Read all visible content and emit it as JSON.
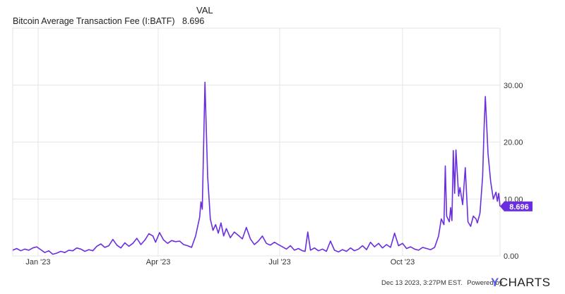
{
  "chart_data": {
    "type": "line",
    "title": "Bitcoin Average Transaction Fee (I:BATF)",
    "value_header": "VAL",
    "current_value": "8.696",
    "last_value_label": "8.696",
    "ylim": [
      0,
      40
    ],
    "yticks": [
      0,
      10,
      20,
      30
    ],
    "ytick_labels": [
      "0.00",
      "10.00",
      "20.00",
      "30.00"
    ],
    "xlim": [
      "2022-12-13",
      "2023-12-13"
    ],
    "xticks": [
      "2023-01-01",
      "2023-04-01",
      "2023-07-01",
      "2023-10-01"
    ],
    "xtick_labels": [
      "Jan '23",
      "Apr '23",
      "Jul '23",
      "Oct '23"
    ],
    "grid": true,
    "series": [
      {
        "name": "Bitcoin Average Transaction Fee",
        "color": "#6a2ee0",
        "points": [
          [
            "2022-12-13",
            1.0
          ],
          [
            "2022-12-16",
            1.3
          ],
          [
            "2022-12-19",
            0.9
          ],
          [
            "2022-12-22",
            1.2
          ],
          [
            "2022-12-25",
            1.0
          ],
          [
            "2022-12-28",
            1.4
          ],
          [
            "2022-12-31",
            1.6
          ],
          [
            "2023-01-03",
            1.1
          ],
          [
            "2023-01-06",
            0.6
          ],
          [
            "2023-01-09",
            0.9
          ],
          [
            "2023-01-12",
            0.3
          ],
          [
            "2023-01-15",
            0.5
          ],
          [
            "2023-01-18",
            0.8
          ],
          [
            "2023-01-21",
            0.6
          ],
          [
            "2023-01-24",
            1.0
          ],
          [
            "2023-01-27",
            0.9
          ],
          [
            "2023-01-30",
            1.4
          ],
          [
            "2023-02-02",
            1.2
          ],
          [
            "2023-02-05",
            0.8
          ],
          [
            "2023-02-08",
            1.1
          ],
          [
            "2023-02-11",
            0.9
          ],
          [
            "2023-02-14",
            1.7
          ],
          [
            "2023-02-17",
            2.1
          ],
          [
            "2023-02-20",
            1.5
          ],
          [
            "2023-02-23",
            1.8
          ],
          [
            "2023-02-26",
            2.9
          ],
          [
            "2023-03-01",
            1.9
          ],
          [
            "2023-03-04",
            1.4
          ],
          [
            "2023-03-07",
            2.3
          ],
          [
            "2023-03-10",
            1.7
          ],
          [
            "2023-03-13",
            2.2
          ],
          [
            "2023-03-16",
            3.1
          ],
          [
            "2023-03-19",
            2.0
          ],
          [
            "2023-03-22",
            2.8
          ],
          [
            "2023-03-25",
            3.9
          ],
          [
            "2023-03-28",
            3.5
          ],
          [
            "2023-03-30",
            2.4
          ],
          [
            "2023-04-02",
            4.1
          ],
          [
            "2023-04-05",
            2.8
          ],
          [
            "2023-04-08",
            2.2
          ],
          [
            "2023-04-11",
            2.7
          ],
          [
            "2023-04-14",
            2.5
          ],
          [
            "2023-04-17",
            2.6
          ],
          [
            "2023-04-20",
            2.0
          ],
          [
            "2023-04-23",
            1.8
          ],
          [
            "2023-04-26",
            1.5
          ],
          [
            "2023-04-29",
            3.5
          ],
          [
            "2023-05-02",
            6.8
          ],
          [
            "2023-05-03",
            9.5
          ],
          [
            "2023-05-04",
            8.2
          ],
          [
            "2023-05-06",
            30.5
          ],
          [
            "2023-05-08",
            14.0
          ],
          [
            "2023-05-10",
            6.5
          ],
          [
            "2023-05-12",
            4.5
          ],
          [
            "2023-05-14",
            5.5
          ],
          [
            "2023-05-16",
            4.0
          ],
          [
            "2023-05-18",
            5.8
          ],
          [
            "2023-05-20",
            3.5
          ],
          [
            "2023-05-22",
            4.8
          ],
          [
            "2023-05-25",
            3.2
          ],
          [
            "2023-05-28",
            4.2
          ],
          [
            "2023-05-31",
            3.6
          ],
          [
            "2023-06-03",
            3.0
          ],
          [
            "2023-06-06",
            5.0
          ],
          [
            "2023-06-09",
            3.0
          ],
          [
            "2023-06-12",
            2.0
          ],
          [
            "2023-06-15",
            2.6
          ],
          [
            "2023-06-18",
            3.5
          ],
          [
            "2023-06-21",
            2.2
          ],
          [
            "2023-06-24",
            1.9
          ],
          [
            "2023-06-27",
            2.4
          ],
          [
            "2023-06-30",
            2.0
          ],
          [
            "2023-07-03",
            1.6
          ],
          [
            "2023-07-06",
            1.2
          ],
          [
            "2023-07-09",
            1.8
          ],
          [
            "2023-07-12",
            1.0
          ],
          [
            "2023-07-15",
            1.3
          ],
          [
            "2023-07-18",
            0.9
          ],
          [
            "2023-07-20",
            0.8
          ],
          [
            "2023-07-22",
            4.2
          ],
          [
            "2023-07-24",
            1.0
          ],
          [
            "2023-07-27",
            1.4
          ],
          [
            "2023-07-30",
            0.9
          ],
          [
            "2023-08-02",
            1.2
          ],
          [
            "2023-08-05",
            0.8
          ],
          [
            "2023-08-08",
            2.6
          ],
          [
            "2023-08-11",
            1.0
          ],
          [
            "2023-08-14",
            0.7
          ],
          [
            "2023-08-17",
            1.1
          ],
          [
            "2023-08-20",
            0.8
          ],
          [
            "2023-08-23",
            1.4
          ],
          [
            "2023-08-26",
            0.9
          ],
          [
            "2023-08-29",
            1.2
          ],
          [
            "2023-09-01",
            1.8
          ],
          [
            "2023-09-04",
            1.1
          ],
          [
            "2023-09-07",
            2.4
          ],
          [
            "2023-09-10",
            1.6
          ],
          [
            "2023-09-13",
            2.2
          ],
          [
            "2023-09-16",
            1.4
          ],
          [
            "2023-09-19",
            2.0
          ],
          [
            "2023-09-22",
            1.5
          ],
          [
            "2023-09-25",
            4.0
          ],
          [
            "2023-09-28",
            1.8
          ],
          [
            "2023-10-01",
            2.2
          ],
          [
            "2023-10-04",
            1.3
          ],
          [
            "2023-10-07",
            1.6
          ],
          [
            "2023-10-10",
            1.2
          ],
          [
            "2023-10-13",
            1.0
          ],
          [
            "2023-10-16",
            1.5
          ],
          [
            "2023-10-19",
            1.3
          ],
          [
            "2023-10-22",
            1.1
          ],
          [
            "2023-10-25",
            1.5
          ],
          [
            "2023-10-28",
            3.5
          ],
          [
            "2023-10-30",
            6.5
          ],
          [
            "2023-11-01",
            5.5
          ],
          [
            "2023-11-02",
            15.8
          ],
          [
            "2023-11-03",
            7.0
          ],
          [
            "2023-11-05",
            6.0
          ],
          [
            "2023-11-06",
            8.5
          ],
          [
            "2023-11-07",
            6.2
          ],
          [
            "2023-11-08",
            18.5
          ],
          [
            "2023-11-09",
            11.0
          ],
          [
            "2023-11-10",
            18.6
          ],
          [
            "2023-11-12",
            10.5
          ],
          [
            "2023-11-13",
            12.0
          ],
          [
            "2023-11-15",
            9.0
          ],
          [
            "2023-11-17",
            15.5
          ],
          [
            "2023-11-19",
            6.0
          ],
          [
            "2023-11-21",
            5.2
          ],
          [
            "2023-11-23",
            7.0
          ],
          [
            "2023-11-25",
            6.5
          ],
          [
            "2023-11-26",
            5.8
          ],
          [
            "2023-11-28",
            7.5
          ],
          [
            "2023-11-30",
            14.0
          ],
          [
            "2023-12-01",
            22.0
          ],
          [
            "2023-12-02",
            28.0
          ],
          [
            "2023-12-04",
            18.0
          ],
          [
            "2023-12-06",
            13.0
          ],
          [
            "2023-12-08",
            10.0
          ],
          [
            "2023-12-10",
            11.2
          ],
          [
            "2023-12-11",
            9.6
          ],
          [
            "2023-12-12",
            11.0
          ],
          [
            "2023-12-13",
            8.696
          ]
        ]
      }
    ]
  },
  "footer": {
    "timestamp": "Dec 13 2023, 3:27PM EST.",
    "powered_by": "Powered by",
    "brand_mark": "Y",
    "brand_name": "CHARTS"
  }
}
